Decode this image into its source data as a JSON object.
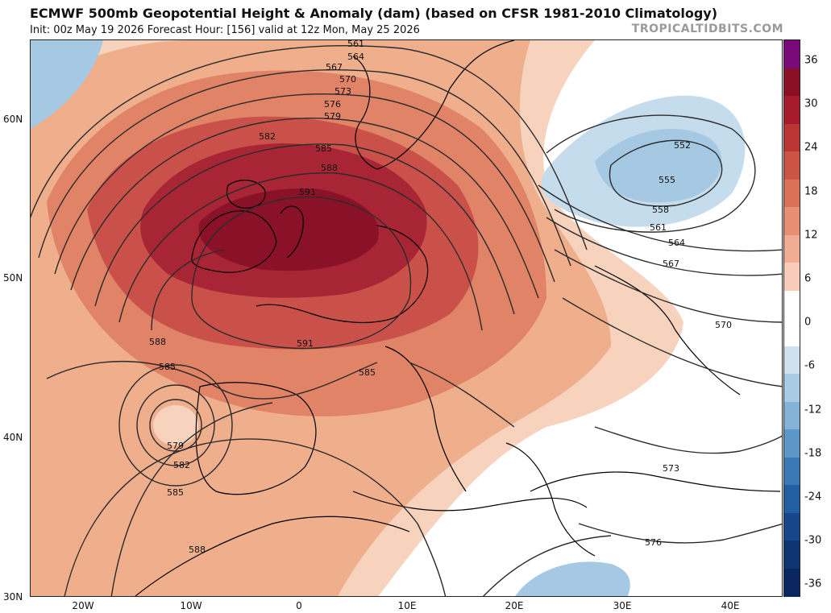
{
  "header": {
    "title": "ECMWF 500mb Geopotential Height & Anomaly (dam) (based on CFSR 1981-2010 Climatology)",
    "subtitle": "Init: 00z May 19 2026   Forecast Hour: [156]   valid at 12z Mon, May 25 2026",
    "brand": "TROPICALTIDBITS.COM"
  },
  "map": {
    "lat_labels": [
      "60N",
      "50N",
      "40N",
      "30N"
    ],
    "lon_labels": [
      "20W",
      "10W",
      "0",
      "10E",
      "20E",
      "30E",
      "40E"
    ],
    "colors": {
      "anom_6": "#f7d3bd",
      "anom_12": "#efae8c",
      "anom_18": "#e08366",
      "anom_24": "#c9514a",
      "anom_30": "#a82535",
      "anom_36": "#8a1228",
      "neg_6": "#c5dced",
      "neg_12": "#a6c9e3",
      "land_outline": "#000000",
      "contour": "#2b2b2b"
    },
    "contour_labels": [
      {
        "text": "561"
      },
      {
        "text": "564"
      },
      {
        "text": "567"
      },
      {
        "text": "570"
      },
      {
        "text": "573"
      },
      {
        "text": "576"
      },
      {
        "text": "579"
      },
      {
        "text": "582"
      },
      {
        "text": "585"
      },
      {
        "text": "588"
      },
      {
        "text": "591"
      },
      {
        "text": "591"
      },
      {
        "text": "588"
      },
      {
        "text": "585"
      },
      {
        "text": "585"
      },
      {
        "text": "579"
      },
      {
        "text": "582"
      },
      {
        "text": "585"
      },
      {
        "text": "588"
      },
      {
        "text": "552"
      },
      {
        "text": "555"
      },
      {
        "text": "558"
      },
      {
        "text": "561"
      },
      {
        "text": "564"
      },
      {
        "text": "567"
      },
      {
        "text": "570"
      },
      {
        "text": "573"
      },
      {
        "text": "576"
      }
    ]
  },
  "colorbar": {
    "labels": [
      "36",
      "30",
      "24",
      "18",
      "12",
      "6",
      "0",
      "-6",
      "-12",
      "-18",
      "-24",
      "-30",
      "-36"
    ],
    "segments": [
      "#7a0a7a",
      "#8c1025",
      "#a81b2c",
      "#bb3535",
      "#cc5447",
      "#dc7158",
      "#e88f73",
      "#f1ad93",
      "#f8ccb8",
      "#ffffff",
      "#ffffff",
      "#cfe1ef",
      "#a9cbe4",
      "#85b3d8",
      "#5d97c8",
      "#3a79b6",
      "#245ea2",
      "#17468a",
      "#0f3473",
      "#0a2560"
    ]
  }
}
